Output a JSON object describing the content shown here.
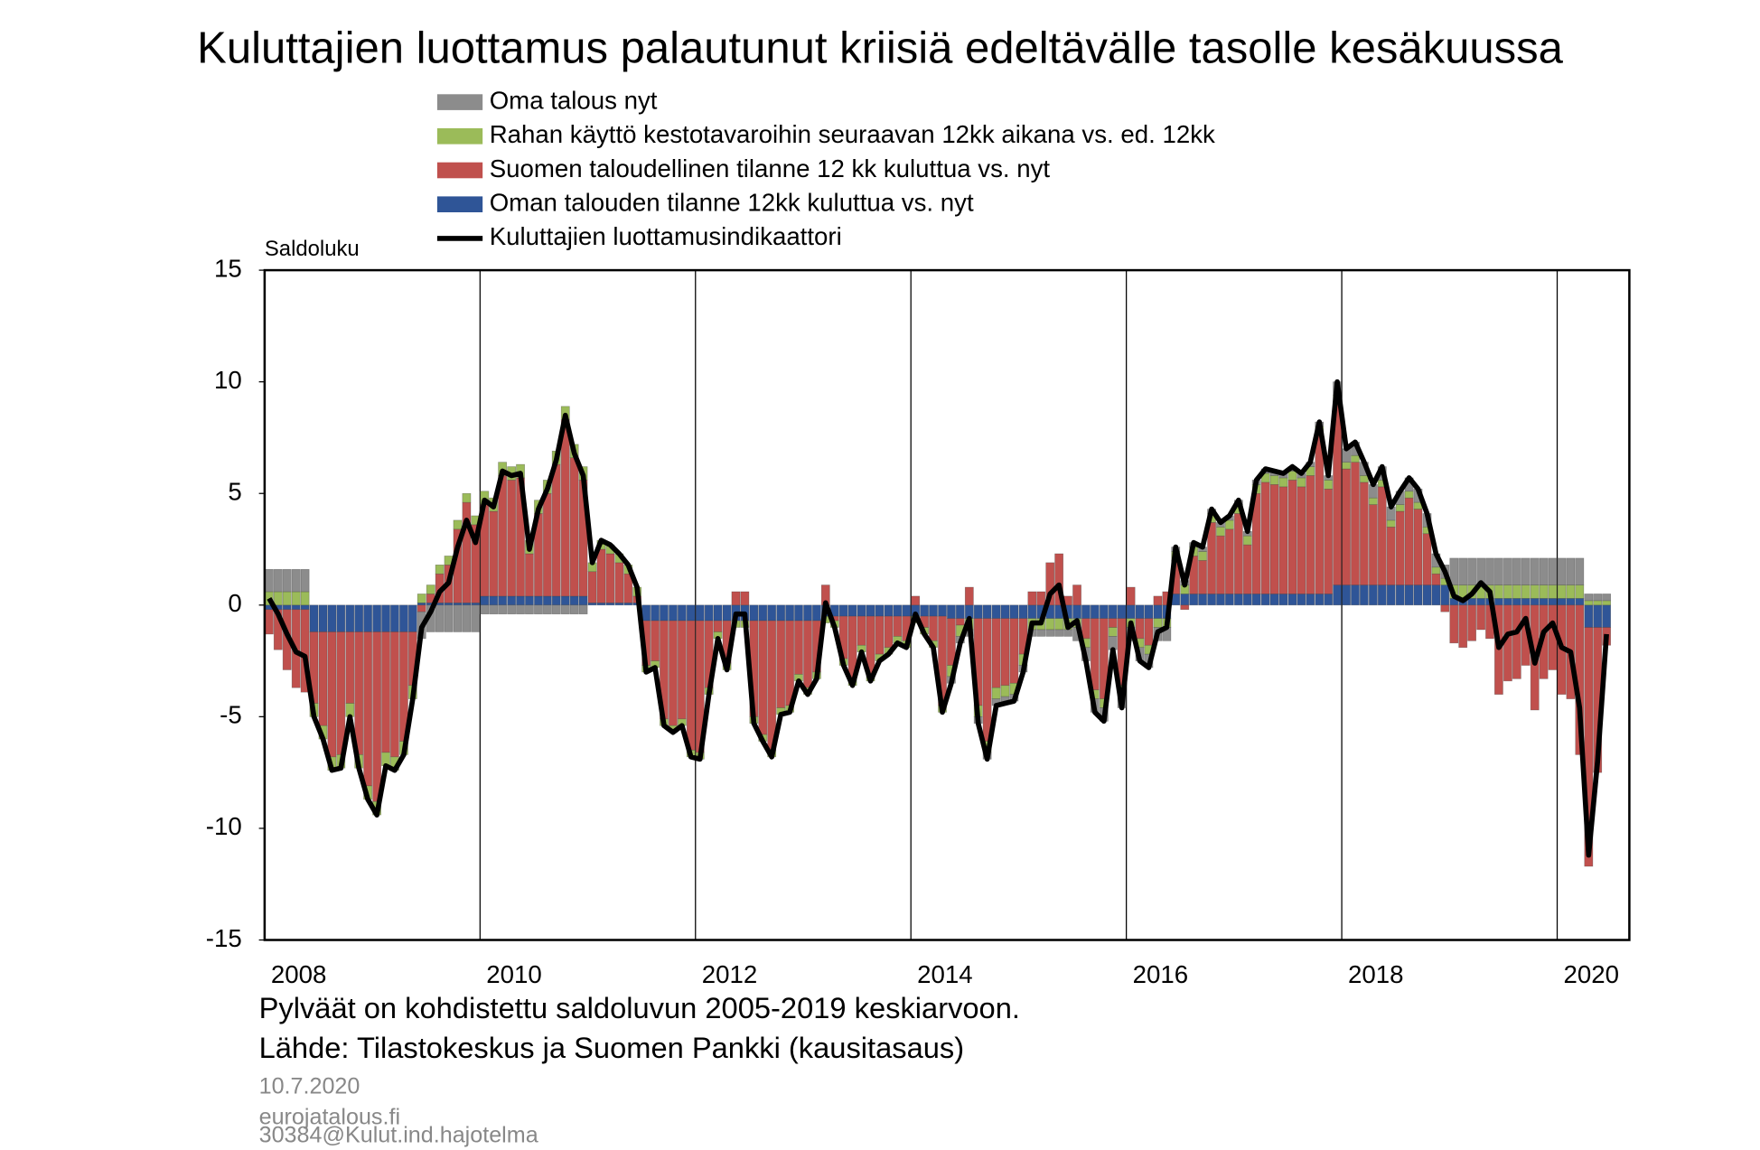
{
  "chart_data": {
    "type": "bar",
    "stacked": true,
    "title": "Kuluttajien luottamus palautunut kriisiä edeltävälle tasolle kesäkuussa",
    "y_label": "Saldoluku",
    "notes": [
      "Pylväät on kohdistettu saldoluvun 2005-2019 keskiarvoon.",
      "Lähde: Tilastokeskus ja Suomen Pankki (kausitasaus)"
    ],
    "footer": [
      "10.7.2020",
      "eurojatalous.fi",
      "30384@Kulut.ind.hajotelma"
    ],
    "xlim": [
      2008,
      2020.67
    ],
    "xticks": [
      2008,
      2010,
      2012,
      2014,
      2016,
      2018,
      2020
    ],
    "ylim": [
      -15,
      15
    ],
    "yticks": [
      -15,
      -10,
      -5,
      0,
      5,
      10,
      15
    ],
    "grid": "x",
    "x": [
      2008.042,
      2008.125,
      2008.208,
      2008.292,
      2008.375,
      2008.458,
      2008.542,
      2008.625,
      2008.708,
      2008.792,
      2008.875,
      2008.958,
      2009.042,
      2009.125,
      2009.208,
      2009.292,
      2009.375,
      2009.458,
      2009.542,
      2009.625,
      2009.708,
      2009.792,
      2009.875,
      2009.958,
      2010.042,
      2010.125,
      2010.208,
      2010.292,
      2010.375,
      2010.458,
      2010.542,
      2010.625,
      2010.708,
      2010.792,
      2010.875,
      2010.958,
      2011.042,
      2011.125,
      2011.208,
      2011.292,
      2011.375,
      2011.458,
      2011.542,
      2011.625,
      2011.708,
      2011.792,
      2011.875,
      2011.958,
      2012.042,
      2012.125,
      2012.208,
      2012.292,
      2012.375,
      2012.458,
      2012.542,
      2012.625,
      2012.708,
      2012.792,
      2012.875,
      2012.958,
      2013.042,
      2013.125,
      2013.208,
      2013.292,
      2013.375,
      2013.458,
      2013.542,
      2013.625,
      2013.708,
      2013.792,
      2013.875,
      2013.958,
      2014.042,
      2014.125,
      2014.208,
      2014.292,
      2014.375,
      2014.458,
      2014.542,
      2014.625,
      2014.708,
      2014.792,
      2014.875,
      2014.958,
      2015.042,
      2015.125,
      2015.208,
      2015.292,
      2015.375,
      2015.458,
      2015.542,
      2015.625,
      2015.708,
      2015.792,
      2015.875,
      2015.958,
      2016.042,
      2016.125,
      2016.208,
      2016.292,
      2016.375,
      2016.458,
      2016.542,
      2016.625,
      2016.708,
      2016.792,
      2016.875,
      2016.958,
      2017.042,
      2017.125,
      2017.208,
      2017.292,
      2017.375,
      2017.458,
      2017.542,
      2017.625,
      2017.708,
      2017.792,
      2017.875,
      2017.958,
      2018.042,
      2018.125,
      2018.208,
      2018.292,
      2018.375,
      2018.458,
      2018.542,
      2018.625,
      2018.708,
      2018.792,
      2018.875,
      2018.958,
      2019.042,
      2019.125,
      2019.208,
      2019.292,
      2019.375,
      2019.458,
      2019.542,
      2019.625,
      2019.708,
      2019.792,
      2019.875,
      2019.958,
      2020.042,
      2020.125,
      2020.208,
      2020.292,
      2020.375,
      2020.458
    ],
    "series": [
      {
        "name": "Oma talous nyt",
        "color": "#8c8c8c",
        "values": [
          1.0,
          1.0,
          1.0,
          1.0,
          1.0,
          0,
          0,
          0,
          0,
          0,
          0,
          0,
          0,
          0,
          0,
          0,
          0,
          -1.2,
          -1.2,
          -1.2,
          -1.2,
          -1.2,
          -1.2,
          -1.2,
          -0.4,
          -0.4,
          -0.4,
          -0.4,
          -0.4,
          -0.4,
          -0.4,
          -0.4,
          -0.4,
          -0.4,
          -0.4,
          -0.4,
          0,
          0,
          0,
          0,
          0,
          0,
          0,
          0,
          0,
          0,
          0,
          0,
          0,
          0,
          0,
          0,
          0,
          0,
          0,
          0,
          0,
          0,
          0,
          0,
          0,
          0,
          0,
          0,
          0,
          0,
          0,
          0,
          0,
          0,
          0,
          0,
          0,
          0,
          0,
          0,
          -0.3,
          -0.3,
          -0.3,
          -0.3,
          -0.3,
          -0.3,
          -0.3,
          -0.3,
          -0.3,
          -0.3,
          -0.3,
          -0.3,
          -0.3,
          -0.3,
          -0.6,
          -0.6,
          -0.6,
          -0.6,
          -0.6,
          -0.6,
          -0.6,
          -0.6,
          -0.6,
          -0.6,
          -0.6,
          0.2,
          0.2,
          0.2,
          0.2,
          0.2,
          0.2,
          0.2,
          0.2,
          0.2,
          0.2,
          0.2,
          0.2,
          0.2,
          0.2,
          0.2,
          0.2,
          0.2,
          0.2,
          0.6,
          0.6,
          0.6,
          0.6,
          0.6,
          0.6,
          0.6,
          0.6,
          0.6,
          0.6,
          0.6,
          0.6,
          0.6,
          1.2,
          1.2,
          1.2,
          1.2,
          1.2,
          1.2,
          1.2,
          1.2,
          1.2,
          1.2,
          1.2,
          1.2,
          1.2,
          1.2,
          1.2,
          0.3,
          0.3,
          0.3
        ]
      },
      {
        "name": "Rahan käyttö kestotavaroihin seuraavan 12kk aikana vs. ed. 12kk",
        "color": "#9bbb59",
        "values": [
          0.6,
          0.6,
          0.6,
          0.6,
          0.6,
          -0.6,
          -0.6,
          -0.6,
          -0.6,
          -0.6,
          -0.6,
          -0.6,
          -0.6,
          -0.6,
          -0.6,
          -0.6,
          -0.6,
          0.4,
          0.4,
          0.4,
          0.4,
          0.4,
          0.4,
          0.4,
          0.6,
          0.6,
          0.6,
          0.6,
          0.6,
          0.6,
          0.6,
          0.6,
          0.6,
          0.6,
          0.6,
          0.6,
          0.4,
          0.4,
          0.4,
          0.4,
          0.4,
          0.4,
          -0.3,
          -0.3,
          -0.3,
          -0.3,
          -0.3,
          -0.3,
          -0.3,
          -0.3,
          -0.3,
          -0.3,
          -0.3,
          -0.3,
          -0.3,
          -0.3,
          -0.3,
          -0.3,
          -0.3,
          -0.3,
          -0.3,
          -0.3,
          -0.3,
          -0.3,
          -0.3,
          -0.3,
          -0.3,
          -0.3,
          -0.3,
          -0.3,
          -0.3,
          -0.3,
          -0.3,
          -0.3,
          -0.3,
          -0.3,
          -0.5,
          -0.5,
          -0.5,
          -0.5,
          -0.5,
          -0.5,
          -0.5,
          -0.5,
          -0.5,
          -0.5,
          -0.5,
          -0.5,
          -0.5,
          -0.5,
          -0.4,
          -0.4,
          -0.4,
          -0.4,
          -0.4,
          -0.4,
          -0.4,
          -0.4,
          -0.4,
          -0.4,
          -0.4,
          0.4,
          0.4,
          0.4,
          0.4,
          0.4,
          0.4,
          0.4,
          0.4,
          0.4,
          0.4,
          0.4,
          0.4,
          0.4,
          0.4,
          0.4,
          0.4,
          0.4,
          0.4,
          0.3,
          0.3,
          0.3,
          0.3,
          0.3,
          0.3,
          0.3,
          0.3,
          0.3,
          0.3,
          0.3,
          0.3,
          0.3,
          0.6,
          0.6,
          0.6,
          0.6,
          0.6,
          0.6,
          0.6,
          0.6,
          0.6,
          0.6,
          0.6,
          0.6,
          0.6,
          0.6,
          0.6,
          0.2,
          0.2,
          0.2
        ]
      },
      {
        "name": "Suomen taloudellinen tilanne 12 kk kuluttua vs. nyt",
        "color": "#c0504d",
        "values": [
          -1.1,
          -1.8,
          -2.7,
          -3.5,
          -3.7,
          -3.2,
          -4.2,
          -5.6,
          -5.5,
          -3.2,
          -5.5,
          -6.9,
          -7.6,
          -5.4,
          -5.6,
          -4.9,
          -2.4,
          -0.3,
          0.4,
          1.3,
          1.7,
          3.3,
          4.5,
          3.5,
          4.1,
          3.8,
          5.4,
          5.2,
          5.3,
          1.9,
          3.7,
          4.6,
          5.9,
          7.9,
          6.2,
          5.2,
          1.4,
          2.4,
          2.2,
          1.8,
          1.3,
          0.3,
          -2.0,
          -1.8,
          -4.4,
          -4.7,
          -4.4,
          -5.8,
          -5.9,
          -3.0,
          -0.5,
          -1.9,
          0.6,
          0.6,
          -4.3,
          -5.1,
          -5.8,
          -3.9,
          -3.8,
          -2.4,
          -3.0,
          -2.3,
          0.9,
          -0.2,
          -1.9,
          -2.8,
          -1.3,
          -2.6,
          -1.7,
          -1.4,
          -0.9,
          -1.1,
          0.4,
          -0.5,
          -1.1,
          -4.0,
          -2.1,
          -0.3,
          0.8,
          -3.9,
          -5.5,
          -3.1,
          -3.0,
          -2.9,
          -1.6,
          0.6,
          0.6,
          1.9,
          2.3,
          0.4,
          0.9,
          -0.9,
          -3.2,
          -3.6,
          -0.4,
          -3.0,
          0.8,
          -0.9,
          -1.2,
          0.4,
          0.6,
          1.5,
          -0.2,
          1.7,
          1.5,
          3.2,
          2.6,
          2.9,
          3.6,
          2.2,
          4.5,
          5.0,
          4.9,
          4.8,
          5.1,
          4.8,
          5.3,
          7.1,
          4.7,
          8.2,
          5.2,
          5.5,
          4.6,
          3.6,
          4.4,
          2.6,
          3.3,
          3.9,
          3.4,
          2.3,
          0.5,
          -0.3,
          -1.7,
          -1.9,
          -1.6,
          -1.1,
          -1.5,
          -4.0,
          -3.4,
          -3.3,
          -2.7,
          -4.7,
          -3.3,
          -2.9,
          -4.0,
          -4.2,
          -6.7,
          -10.7,
          -6.5,
          -0.8
        ]
      },
      {
        "name": "Oman talouden tilanne 12kk kuluttua vs. nyt",
        "color": "#2f5597",
        "values": [
          -0.2,
          -0.2,
          -0.2,
          -0.2,
          -0.2,
          -1.2,
          -1.2,
          -1.2,
          -1.2,
          -1.2,
          -1.2,
          -1.2,
          -1.2,
          -1.2,
          -1.2,
          -1.2,
          -1.2,
          0.1,
          0.1,
          0.1,
          0.1,
          0.1,
          0.1,
          0.1,
          0.4,
          0.4,
          0.4,
          0.4,
          0.4,
          0.4,
          0.4,
          0.4,
          0.4,
          0.4,
          0.4,
          0.4,
          0.1,
          0.1,
          0.1,
          0.1,
          0.1,
          0.1,
          -0.7,
          -0.7,
          -0.7,
          -0.7,
          -0.7,
          -0.7,
          -0.7,
          -0.7,
          -0.7,
          -0.7,
          -0.7,
          -0.7,
          -0.7,
          -0.7,
          -0.7,
          -0.7,
          -0.7,
          -0.7,
          -0.7,
          -0.7,
          -0.5,
          -0.5,
          -0.5,
          -0.5,
          -0.5,
          -0.5,
          -0.5,
          -0.5,
          -0.5,
          -0.5,
          -0.5,
          -0.5,
          -0.5,
          -0.5,
          -0.6,
          -0.6,
          -0.6,
          -0.6,
          -0.6,
          -0.6,
          -0.6,
          -0.6,
          -0.6,
          -0.6,
          -0.6,
          -0.6,
          -0.6,
          -0.6,
          -0.6,
          -0.6,
          -0.6,
          -0.6,
          -0.6,
          -0.6,
          -0.6,
          -0.6,
          -0.6,
          -0.6,
          -0.6,
          0.5,
          0.5,
          0.5,
          0.5,
          0.5,
          0.5,
          0.5,
          0.5,
          0.5,
          0.5,
          0.5,
          0.5,
          0.5,
          0.5,
          0.5,
          0.5,
          0.5,
          0.5,
          0.9,
          0.9,
          0.9,
          0.9,
          0.9,
          0.9,
          0.9,
          0.9,
          0.9,
          0.9,
          0.9,
          0.9,
          0.9,
          0.3,
          0.3,
          0.3,
          0.3,
          0.3,
          0.3,
          0.3,
          0.3,
          0.3,
          0.3,
          0.3,
          0.3,
          0.3,
          0.3,
          0.3,
          -1.0,
          -1.0,
          -1.0
        ]
      }
    ],
    "line": {
      "name": "Kuluttajien luottamusindikaattori",
      "color": "#000000",
      "values": [
        0.3,
        -0.4,
        -1.3,
        -2.1,
        -2.3,
        -5.0,
        -6.0,
        -7.4,
        -7.3,
        -5.0,
        -7.3,
        -8.7,
        -9.4,
        -7.2,
        -7.4,
        -6.7,
        -4.2,
        -1.0,
        -0.3,
        0.6,
        1.0,
        2.6,
        3.8,
        2.8,
        4.7,
        4.4,
        6.0,
        5.8,
        5.9,
        2.5,
        4.3,
        5.2,
        6.5,
        8.5,
        6.8,
        5.8,
        1.9,
        2.9,
        2.7,
        2.3,
        1.8,
        0.8,
        -3.0,
        -2.8,
        -5.4,
        -5.7,
        -5.4,
        -6.8,
        -6.9,
        -4.0,
        -1.5,
        -2.9,
        -0.4,
        -0.4,
        -5.3,
        -6.1,
        -6.8,
        -4.9,
        -4.8,
        -3.4,
        -4.0,
        -3.3,
        0.1,
        -1.0,
        -2.7,
        -3.6,
        -2.1,
        -3.4,
        -2.5,
        -2.2,
        -1.7,
        -1.9,
        -0.4,
        -1.3,
        -1.9,
        -4.8,
        -3.5,
        -1.7,
        -0.6,
        -5.3,
        -6.9,
        -4.5,
        -4.4,
        -4.3,
        -3.0,
        -0.8,
        -0.8,
        0.5,
        0.9,
        -1.0,
        -0.7,
        -2.5,
        -4.8,
        -5.2,
        -2.0,
        -4.6,
        -0.8,
        -2.5,
        -2.8,
        -1.2,
        -1.0,
        2.6,
        0.9,
        2.8,
        2.6,
        4.3,
        3.7,
        4.0,
        4.7,
        3.3,
        5.6,
        6.1,
        6.0,
        5.9,
        6.2,
        5.9,
        6.4,
        8.2,
        5.8,
        10.0,
        7.0,
        7.3,
        6.4,
        5.4,
        6.2,
        4.4,
        5.1,
        5.7,
        5.2,
        4.1,
        2.3,
        1.5,
        0.4,
        0.2,
        0.5,
        1.0,
        0.6,
        -1.9,
        -1.3,
        -1.2,
        -0.6,
        -2.6,
        -1.2,
        -0.8,
        -1.9,
        -2.1,
        -4.6,
        -11.2,
        -7.0,
        -1.3
      ]
    }
  }
}
